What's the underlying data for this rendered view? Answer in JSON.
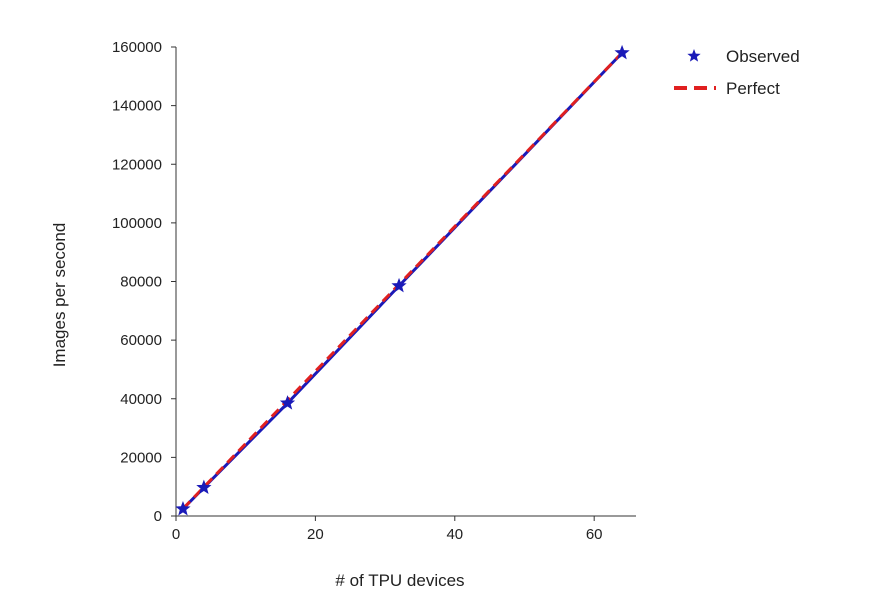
{
  "chart_data": {
    "type": "line",
    "title": "",
    "xlabel": "# of TPU devices",
    "ylabel": "Images per second",
    "xlim": [
      0,
      66
    ],
    "ylim": [
      0,
      160000
    ],
    "x_ticks": [
      0,
      20,
      40,
      60
    ],
    "x_tick_labels": [
      "0",
      "20",
      "40",
      "60"
    ],
    "y_ticks": [
      0,
      20000,
      40000,
      60000,
      80000,
      100000,
      120000,
      140000,
      160000
    ],
    "y_tick_labels": [
      "0",
      "20000",
      "40000",
      "60000",
      "80000",
      "100000",
      "120000",
      "140000",
      "160000"
    ],
    "grid": false,
    "legend_position": "top-right",
    "series": [
      {
        "name": "Observed",
        "marker": "star",
        "color": "#1a1ab8",
        "x": [
          1,
          4,
          16,
          32,
          64
        ],
        "values": [
          2400,
          9700,
          38500,
          78500,
          158000
        ]
      },
      {
        "name": "Perfect",
        "style": "dashed",
        "color": "#e02020",
        "x": [
          1,
          64
        ],
        "values": [
          2470,
          158000
        ]
      }
    ]
  }
}
